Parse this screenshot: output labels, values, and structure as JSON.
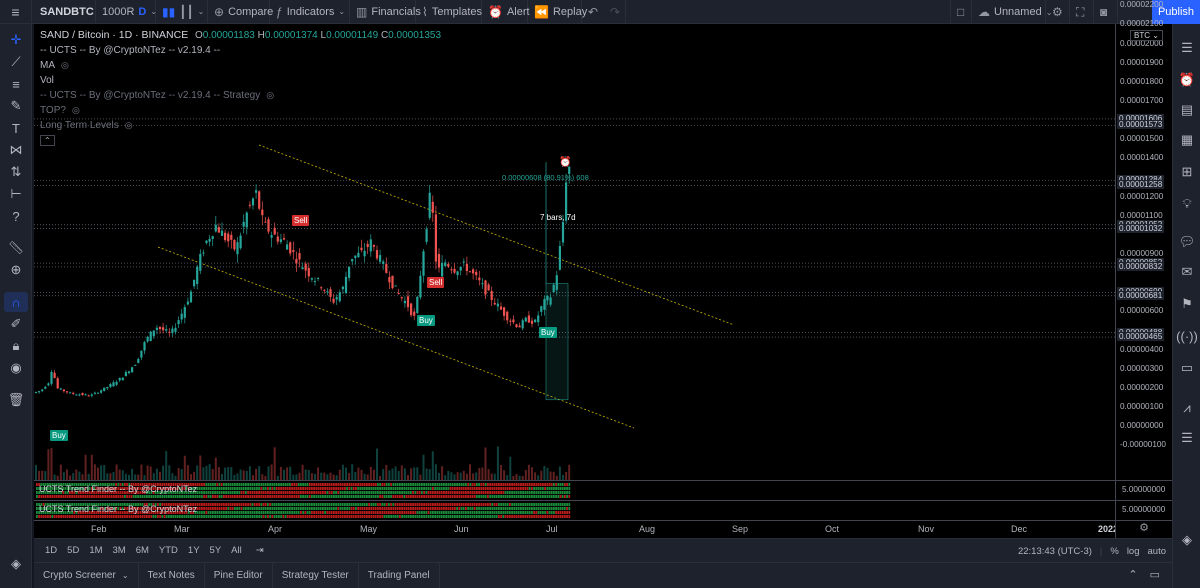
{
  "toolbar": {
    "symbol": "SANDBTC",
    "interval": "1000R",
    "interval_badge": "D",
    "compare": "Compare",
    "indicators": "Indicators",
    "financials": "Financials",
    "templates": "Templates",
    "alert": "Alert",
    "replay": "Replay",
    "layout_name": "Unnamed",
    "publish": "Publish"
  },
  "legend": {
    "title": "SAND / Bitcoin · 1D · BINANCE",
    "o_label": "O",
    "o": "0.00001183",
    "h_label": "H",
    "h": "0.00001374",
    "l_label": "L",
    "l": "0.00001149",
    "c_label": "C",
    "c": "0.00001353",
    "indicators": [
      "-- UCTS -- By @CryptoNTez -- v2.19.4 --",
      "MA",
      "Vol",
      "-- UCTS -- By @CryptoNTez -- v2.19.4 -- Strategy",
      "TOP?",
      "Long Term Levels"
    ]
  },
  "price_scale": {
    "currency": "BTC",
    "labels": [
      "0.00002100",
      "0.00002000",
      "0.00001900",
      "0.00001800",
      "0.00001700",
      "0.00001500",
      "0.00001400",
      "0.00001200",
      "0.00001100",
      "0.00000900",
      "0.00000600",
      "0.00000400",
      "0.00000300",
      "0.00000200",
      "0.00000100",
      "0.00000000",
      "-0.00000100"
    ],
    "top_label": "0.00002200",
    "boxed": [
      "0.00001606",
      "0.00001573",
      "0.00001284",
      "0.00001258",
      "0.00001052",
      "0.00001032",
      "0.00000852",
      "0.00000832",
      "0.00000699",
      "0.00000681",
      "0.00000488",
      "0.00000465"
    ]
  },
  "measure": {
    "change": "0.00000608 (80.91%) 608",
    "bars": "7 bars, 7d"
  },
  "signals": {
    "buy": "Buy",
    "sell": "Sell"
  },
  "panes": [
    {
      "label": "UCTS Trend Finder -- By @CryptoNTez",
      "scale": "5.00000000"
    },
    {
      "label": "UCTS Trend Finder -- By @CryptoNTez",
      "scale": "5.00000000"
    }
  ],
  "time_scale": [
    "Feb",
    "Mar",
    "Apr",
    "May",
    "Jun",
    "Jul",
    "Aug",
    "Sep",
    "Oct",
    "Nov",
    "Dec",
    "2022"
  ],
  "range_bar": {
    "ranges": [
      "1D",
      "5D",
      "1M",
      "3M",
      "6M",
      "YTD",
      "1Y",
      "5Y",
      "All"
    ],
    "clock": "22:13:43 (UTC-3)",
    "percent": "%",
    "log": "log",
    "auto": "auto"
  },
  "footer_tabs": [
    "Crypto Screener",
    "Text Notes",
    "Pine Editor",
    "Strategy Tester",
    "Trading Panel"
  ],
  "colors": {
    "up": "#26a69a",
    "down": "#ef5350",
    "channel": "#c8b400",
    "accent": "#2962ff"
  }
}
